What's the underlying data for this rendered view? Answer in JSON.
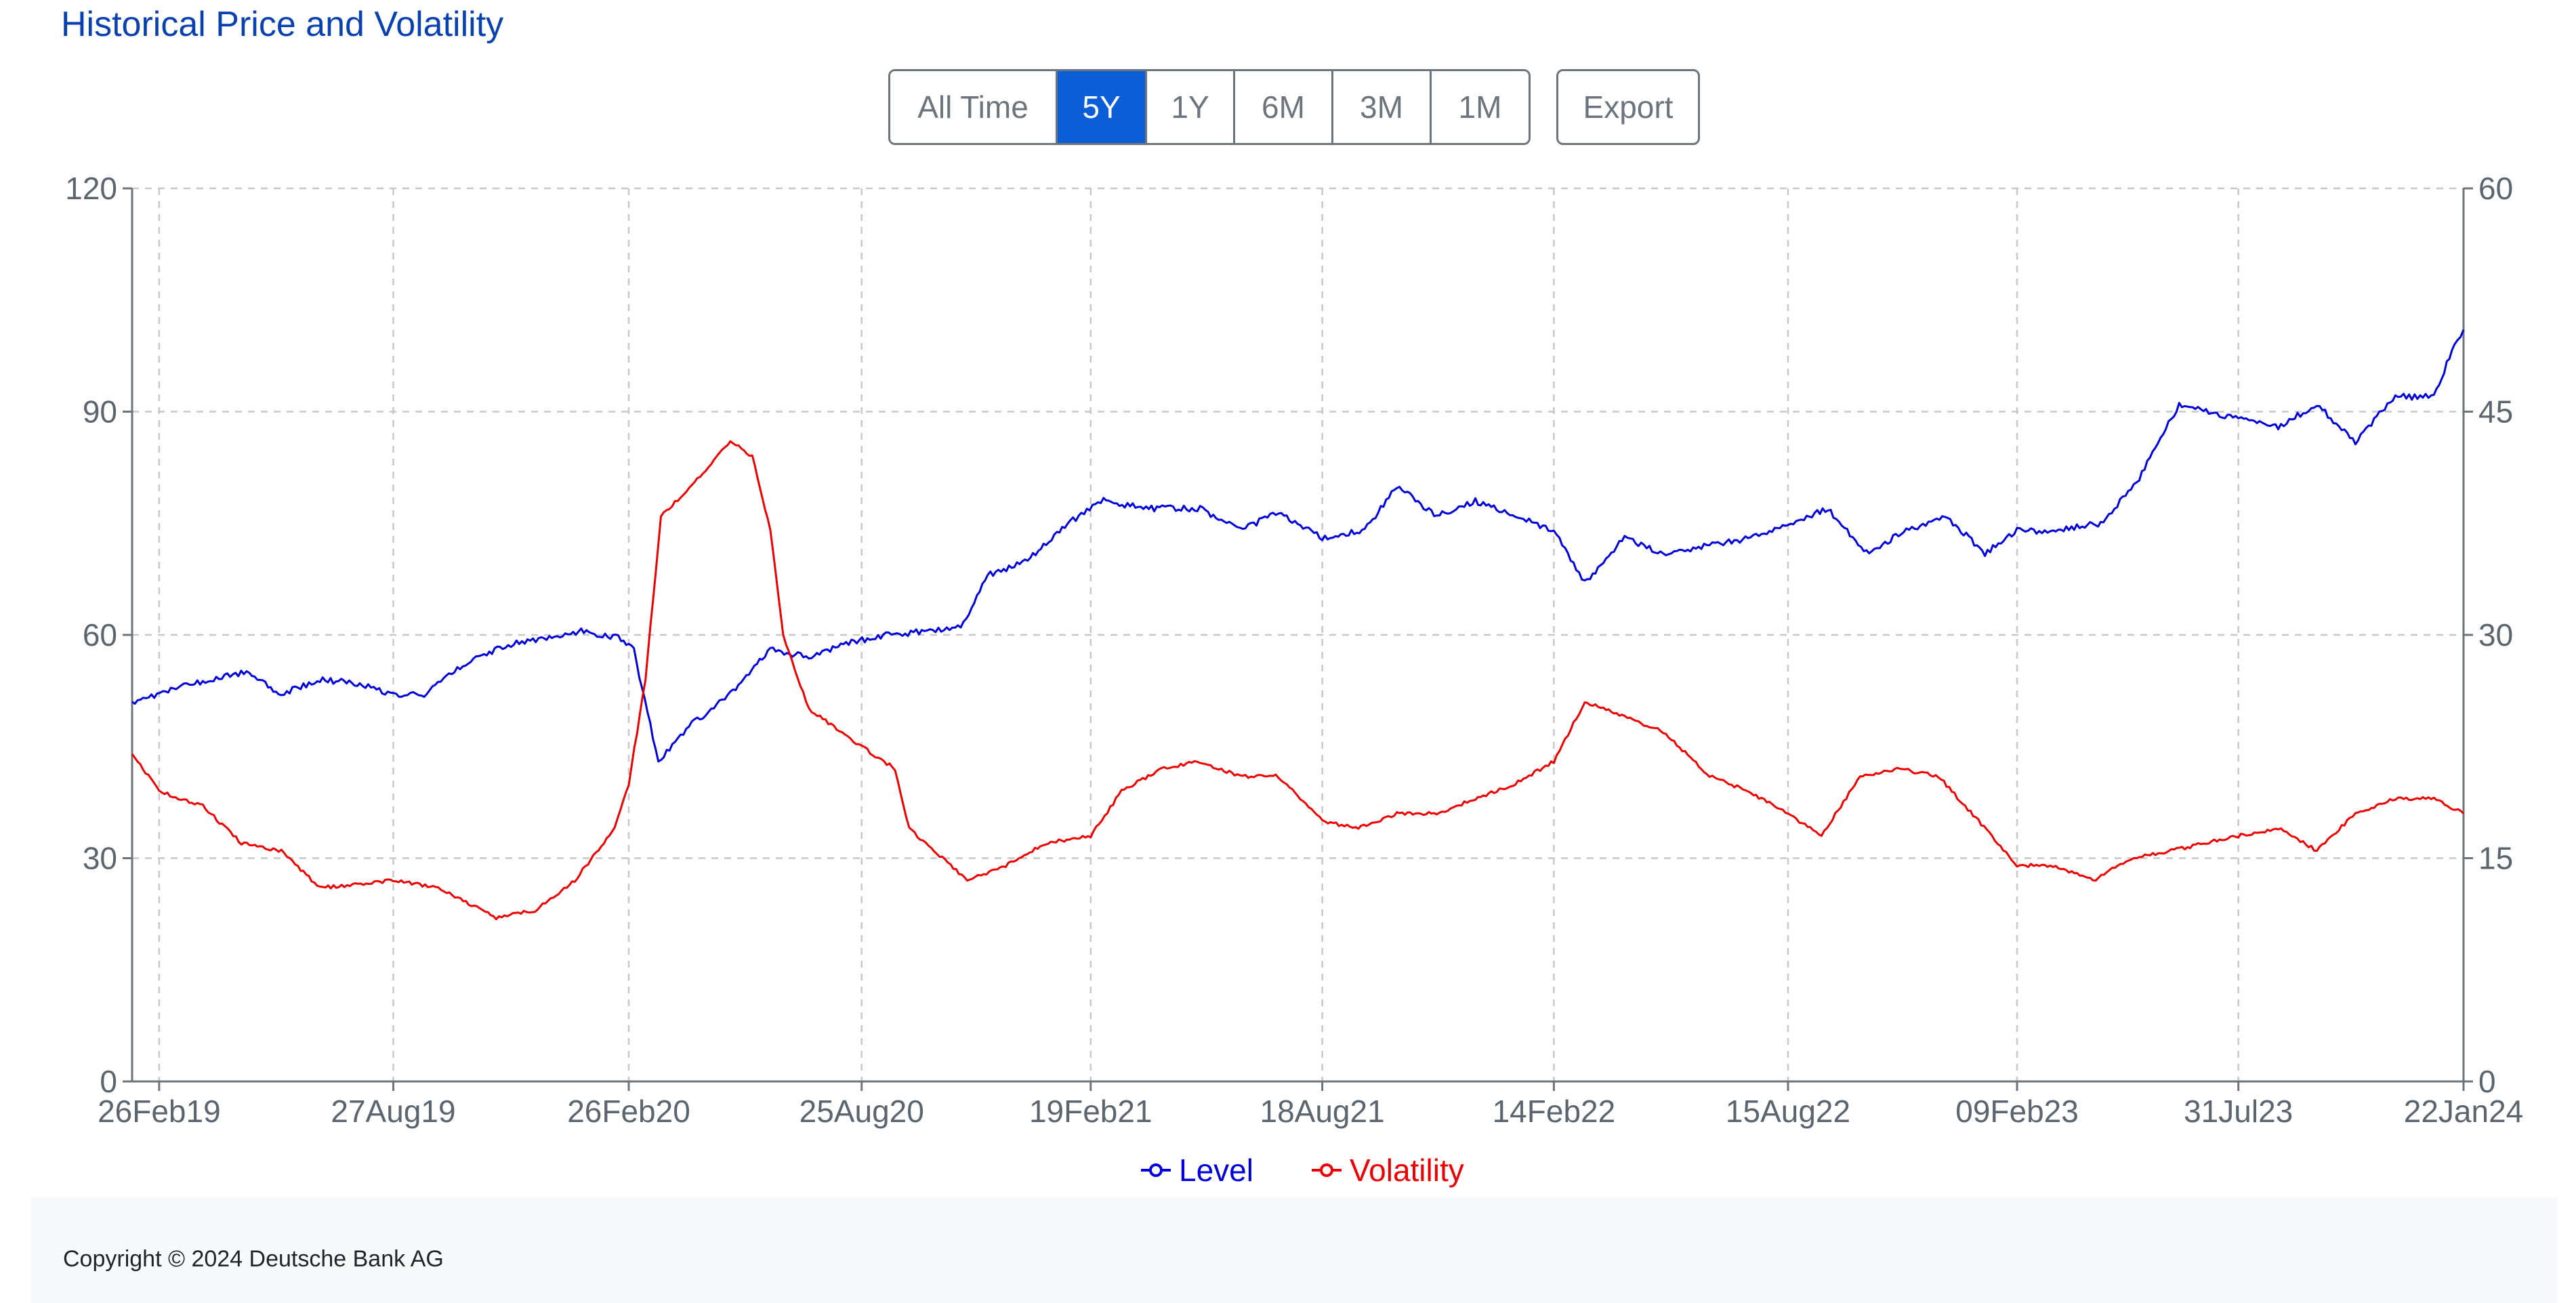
{
  "title": "Historical Price and Volatility",
  "range_buttons": [
    {
      "label": "All Time",
      "active": false
    },
    {
      "label": "5Y",
      "active": true
    },
    {
      "label": "1Y",
      "active": false
    },
    {
      "label": "6M",
      "active": false
    },
    {
      "label": "3M",
      "active": false
    },
    {
      "label": "1M",
      "active": false
    }
  ],
  "export_label": "Export",
  "footer": {
    "copyright": "Copyright © 2024 Deutsche Bank AG"
  },
  "colors": {
    "level": "#0000dd",
    "volatility": "#ee0000",
    "accent": "#0b5ed7",
    "title": "#0a41b0"
  },
  "chart_data": {
    "type": "line",
    "title": "Historical Price and Volatility",
    "grid": true,
    "legend_position": "bottom-center",
    "x_axis": {
      "start": "2019-02-05",
      "end": "2024-01-22",
      "ticks": [
        "26Feb19",
        "27Aug19",
        "26Feb20",
        "25Aug20",
        "19Feb21",
        "18Aug21",
        "14Feb22",
        "15Aug22",
        "09Feb23",
        "31Jul23",
        "22Jan24"
      ]
    },
    "y_left": {
      "min": 0,
      "max": 120,
      "ticks": [
        0,
        30,
        60,
        90,
        120
      ]
    },
    "y_right": {
      "min": 0,
      "max": 60,
      "ticks": [
        0,
        15,
        30,
        45,
        60
      ]
    },
    "series": [
      {
        "name": "Level",
        "axis": "left",
        "color": "#0000dd",
        "points": [
          [
            "2019-02-05",
            51
          ],
          [
            "2019-03-05",
            52.5
          ],
          [
            "2019-04-05",
            54
          ],
          [
            "2019-05-05",
            55
          ],
          [
            "2019-06-01",
            52
          ],
          [
            "2019-07-01",
            54
          ],
          [
            "2019-08-01",
            53.5
          ],
          [
            "2019-08-27",
            52
          ],
          [
            "2019-09-20",
            52
          ],
          [
            "2019-10-20",
            56
          ],
          [
            "2019-11-20",
            58.5
          ],
          [
            "2019-12-20",
            59.5
          ],
          [
            "2020-01-20",
            60.5
          ],
          [
            "2020-02-20",
            59.5
          ],
          [
            "2020-03-01",
            58
          ],
          [
            "2020-03-20",
            43
          ],
          [
            "2020-04-15",
            48
          ],
          [
            "2020-05-15",
            52
          ],
          [
            "2020-06-15",
            58
          ],
          [
            "2020-07-15",
            57
          ],
          [
            "2020-08-15",
            59
          ],
          [
            "2020-09-15",
            60
          ],
          [
            "2020-10-15",
            60.5
          ],
          [
            "2020-11-10",
            61
          ],
          [
            "2020-12-01",
            68
          ],
          [
            "2021-01-01",
            70
          ],
          [
            "2021-02-01",
            75
          ],
          [
            "2021-03-01",
            78
          ],
          [
            "2021-04-01",
            77
          ],
          [
            "2021-05-15",
            77
          ],
          [
            "2021-06-15",
            74
          ],
          [
            "2021-07-15",
            76.5
          ],
          [
            "2021-08-18",
            73
          ],
          [
            "2021-09-20",
            74
          ],
          [
            "2021-10-15",
            80
          ],
          [
            "2021-11-15",
            76
          ],
          [
            "2021-12-15",
            78
          ],
          [
            "2022-01-15",
            76
          ],
          [
            "2022-02-14",
            74
          ],
          [
            "2022-03-10",
            67
          ],
          [
            "2022-04-10",
            73
          ],
          [
            "2022-05-10",
            71
          ],
          [
            "2022-06-15",
            72
          ],
          [
            "2022-07-15",
            73
          ],
          [
            "2022-08-15",
            75
          ],
          [
            "2022-09-15",
            77
          ],
          [
            "2022-10-15",
            71
          ],
          [
            "2022-11-15",
            74
          ],
          [
            "2022-12-15",
            76
          ],
          [
            "2023-01-15",
            71
          ],
          [
            "2023-02-09",
            74
          ],
          [
            "2023-03-09",
            74
          ],
          [
            "2023-04-15",
            75
          ],
          [
            "2023-05-15",
            81
          ],
          [
            "2023-06-15",
            91
          ],
          [
            "2023-07-31",
            89
          ],
          [
            "2023-08-31",
            88
          ],
          [
            "2023-09-30",
            91
          ],
          [
            "2023-10-30",
            86
          ],
          [
            "2023-11-30",
            92
          ],
          [
            "2023-12-30",
            92
          ],
          [
            "2024-01-15",
            99
          ],
          [
            "2024-01-22",
            101
          ]
        ]
      },
      {
        "name": "Volatility",
        "axis": "right",
        "color": "#ee0000",
        "points": [
          [
            "2019-02-05",
            22
          ],
          [
            "2019-02-26",
            19.5
          ],
          [
            "2019-04-01",
            18.5
          ],
          [
            "2019-05-01",
            16
          ],
          [
            "2019-06-01",
            15.5
          ],
          [
            "2019-07-01",
            13
          ],
          [
            "2019-08-27",
            13.5
          ],
          [
            "2019-10-01",
            13
          ],
          [
            "2019-11-15",
            11
          ],
          [
            "2019-12-15",
            11.5
          ],
          [
            "2020-01-15",
            13.5
          ],
          [
            "2020-02-15",
            17
          ],
          [
            "2020-02-26",
            20
          ],
          [
            "2020-03-10",
            27
          ],
          [
            "2020-03-22",
            38
          ],
          [
            "2020-04-15",
            40
          ],
          [
            "2020-05-15",
            43
          ],
          [
            "2020-06-01",
            42
          ],
          [
            "2020-06-15",
            37
          ],
          [
            "2020-06-25",
            30
          ],
          [
            "2020-07-15",
            25
          ],
          [
            "2020-08-25",
            22.5
          ],
          [
            "2020-09-20",
            21
          ],
          [
            "2020-10-01",
            17
          ],
          [
            "2020-11-15",
            13.5
          ],
          [
            "2020-12-15",
            14.5
          ],
          [
            "2021-01-15",
            16
          ],
          [
            "2021-02-19",
            16.5
          ],
          [
            "2021-03-15",
            19.5
          ],
          [
            "2021-04-15",
            21
          ],
          [
            "2021-05-15",
            21.5
          ],
          [
            "2021-06-15",
            20.5
          ],
          [
            "2021-07-15",
            20.5
          ],
          [
            "2021-08-18",
            17.5
          ],
          [
            "2021-09-15",
            17
          ],
          [
            "2021-10-15",
            18
          ],
          [
            "2021-11-15",
            18
          ],
          [
            "2021-12-15",
            19
          ],
          [
            "2022-01-15",
            20
          ],
          [
            "2022-02-14",
            21.5
          ],
          [
            "2022-03-10",
            25.5
          ],
          [
            "2022-04-10",
            24.5
          ],
          [
            "2022-05-10",
            23.5
          ],
          [
            "2022-06-15",
            20.5
          ],
          [
            "2022-07-15",
            19.5
          ],
          [
            "2022-08-15",
            18
          ],
          [
            "2022-09-10",
            16.5
          ],
          [
            "2022-10-10",
            20.5
          ],
          [
            "2022-11-10",
            21
          ],
          [
            "2022-12-10",
            20.5
          ],
          [
            "2023-01-10",
            17.5
          ],
          [
            "2023-02-09",
            14.5
          ],
          [
            "2023-03-09",
            14.5
          ],
          [
            "2023-04-09",
            13.5
          ],
          [
            "2023-05-09",
            15
          ],
          [
            "2023-06-09",
            15.5
          ],
          [
            "2023-07-31",
            16.5
          ],
          [
            "2023-08-31",
            17
          ],
          [
            "2023-09-30",
            15.5
          ],
          [
            "2023-10-30",
            18
          ],
          [
            "2023-11-30",
            19
          ],
          [
            "2023-12-30",
            19
          ],
          [
            "2024-01-22",
            18
          ]
        ]
      }
    ]
  }
}
